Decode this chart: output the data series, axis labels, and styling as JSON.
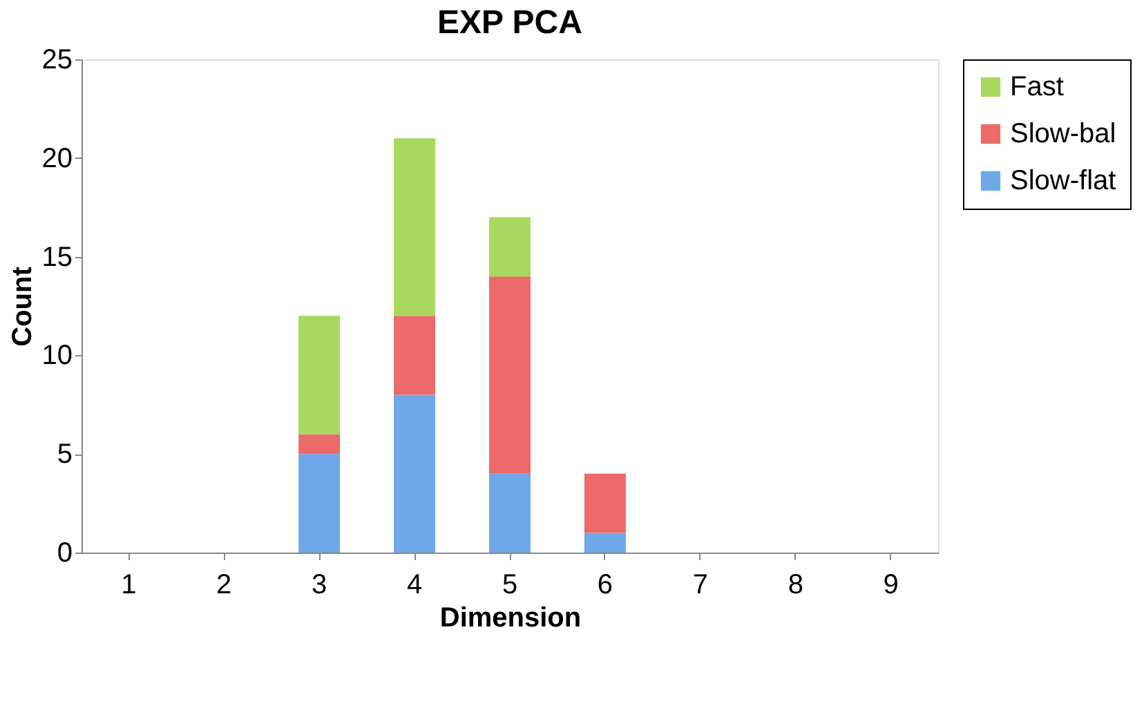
{
  "chart_data": {
    "type": "bar",
    "title": "EXP PCA",
    "xlabel": "Dimension",
    "ylabel": "Count",
    "categories": [
      "1",
      "2",
      "3",
      "4",
      "5",
      "6",
      "7",
      "8",
      "9"
    ],
    "stacked": true,
    "series": [
      {
        "name": "Slow-flat",
        "color": "#6fa8e8",
        "values": [
          0,
          0,
          5,
          8,
          4,
          1,
          0,
          0,
          0
        ]
      },
      {
        "name": "Slow-bal",
        "color": "#ec6a6a",
        "values": [
          0,
          0,
          1,
          4,
          10,
          3,
          0,
          0,
          0
        ]
      },
      {
        "name": "Fast",
        "color": "#a9d85e",
        "values": [
          0,
          0,
          6,
          9,
          3,
          0,
          0,
          0,
          0
        ]
      }
    ],
    "ylim": [
      0,
      25
    ],
    "yticks": [
      0,
      5,
      10,
      15,
      20,
      25
    ],
    "grid": false,
    "legend": "right"
  }
}
